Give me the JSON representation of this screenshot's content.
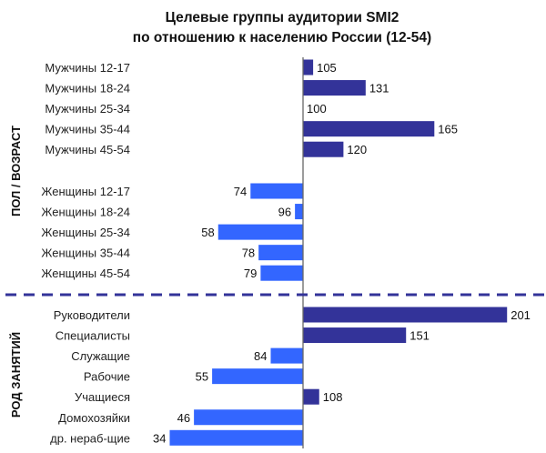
{
  "chart_data": {
    "type": "bar",
    "orientation": "horizontal",
    "title": "Целевые группы аудитории SMI2",
    "subtitle": "по отношению к населению России (12-54)",
    "baseline": 100,
    "colors": {
      "above": "#333399",
      "below": "#3366ff",
      "divider": "#333399"
    },
    "groups": [
      {
        "name": "ПОЛ / ВОЗРАСТ",
        "subgroups": [
          {
            "categories": [
              "Мужчины 12-17",
              "Мужчины 18-24",
              "Мужчины 25-34",
              "Мужчины 35-44",
              "Мужчины 45-54"
            ],
            "values": [
              105,
              131,
              100,
              165,
              120
            ]
          },
          {
            "categories": [
              "Женщины 12-17",
              "Женщины 18-24",
              "Женщины 25-34",
              "Женщины 35-44",
              "Женщины 45-54"
            ],
            "values": [
              74,
              96,
              58,
              78,
              79
            ]
          }
        ]
      },
      {
        "name": "РОД ЗАНЯТИЙ",
        "subgroups": [
          {
            "categories": [
              "Руководители",
              "Специалисты",
              "Служащие",
              "Рабочие",
              "Учащиеся",
              "Домохозяйки",
              "др. нераб-щие"
            ],
            "values": [
              201,
              151,
              84,
              55,
              108,
              46,
              34
            ]
          }
        ]
      }
    ]
  }
}
